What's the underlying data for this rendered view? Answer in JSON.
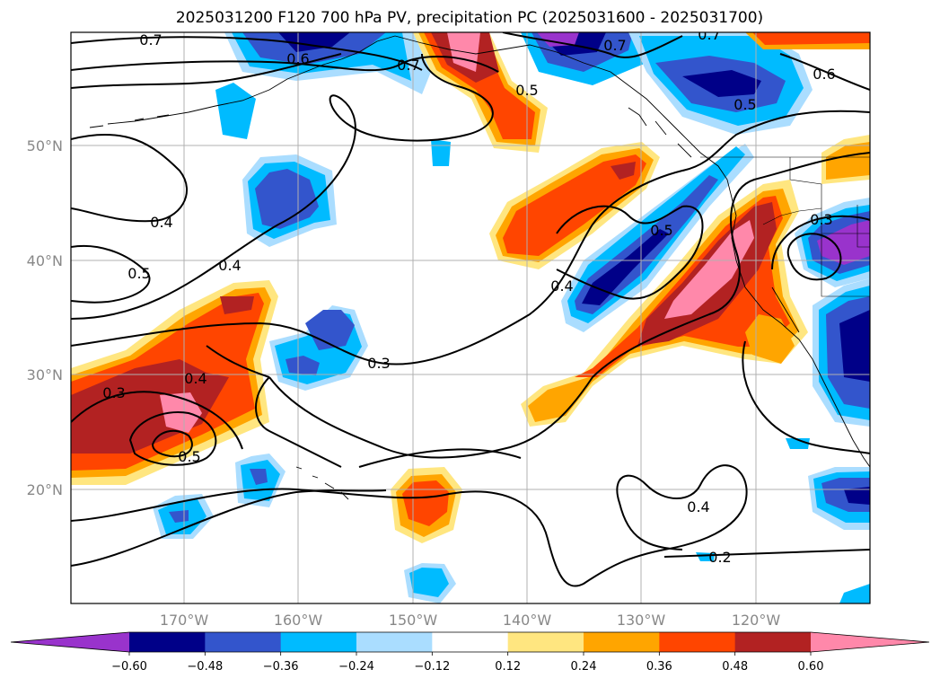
{
  "title": "2025031200 F120 700 hPa PV, precipitation PC (2025031600 - 2025031700)",
  "lat_ticks": [
    "50°N",
    "40°N",
    "30°N",
    "20°N"
  ],
  "lon_ticks": [
    "170°W",
    "160°W",
    "150°W",
    "140°W",
    "130°W",
    "120°W"
  ],
  "colorbar": {
    "ticks": [
      "−0.60",
      "−0.48",
      "−0.36",
      "−0.24",
      "−0.12",
      "0.12",
      "0.24",
      "0.36",
      "0.48",
      "0.60"
    ],
    "colors": [
      "#9933cc",
      "#000088",
      "#3355cc",
      "#00bbff",
      "#aaddff",
      "#ffffff",
      "#ffe680",
      "#ffa500",
      "#ff4500",
      "#b22222",
      "#ff88aa"
    ]
  },
  "contour_labels": [
    "0.7",
    "0.6",
    "0.7",
    "0.5",
    "0.7",
    "0.7",
    "0.6",
    "0.5",
    "0.4",
    "0.4",
    "0.5",
    "0.5",
    "0.4",
    "0.3",
    "0.3",
    "0.4",
    "0.3",
    "0.5",
    "0.4",
    "0.2"
  ]
}
